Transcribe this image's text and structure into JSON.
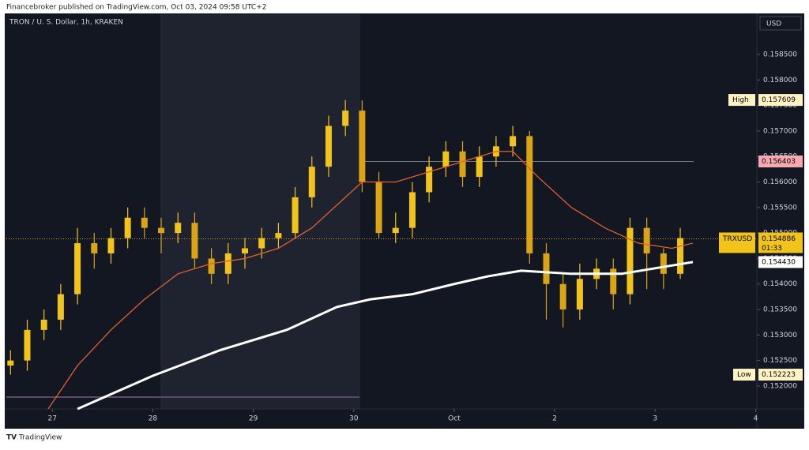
{
  "header": {
    "publisher": "Financebroker published on TradingView.com, Oct 03, 2024 09:58 UTC+2",
    "symbol": "TRON / U. S. Dollar, 1h, KRAKEN",
    "currency": "USD"
  },
  "footer": "TradingView",
  "chart_data": {
    "type": "candlestick",
    "x": [
      -10,
      -6,
      -2,
      2,
      6,
      10,
      14,
      18,
      22,
      26,
      30,
      34,
      38,
      42,
      46,
      50,
      54,
      58,
      62,
      66,
      70,
      74,
      78,
      82,
      86,
      90,
      94,
      98,
      102,
      106,
      110,
      114,
      118,
      122,
      126,
      130,
      134,
      138,
      142,
      146,
      150
    ],
    "open": [
      0.1524,
      0.1525,
      0.1531,
      0.1533,
      0.1538,
      0.1548,
      0.1546,
      0.1549,
      0.1553,
      0.1551,
      0.155,
      0.1552,
      0.1545,
      0.1542,
      0.1546,
      0.1547,
      0.1549,
      0.155,
      0.1557,
      0.1563,
      0.1571,
      0.1574,
      0.156,
      0.155,
      0.1551,
      0.1558,
      0.1563,
      0.1566,
      0.1561,
      0.1565,
      0.1567,
      0.1569,
      0.1546,
      0.154,
      0.1535,
      0.1541,
      0.1543,
      0.1538,
      0.1551,
      0.1546,
      0.1542
    ],
    "high": [
      0.1527,
      0.1533,
      0.1535,
      0.154,
      0.1551,
      0.155,
      0.1551,
      0.1555,
      0.1555,
      0.1553,
      0.1554,
      0.1554,
      0.1547,
      0.1548,
      0.1549,
      0.1551,
      0.1552,
      0.1559,
      0.1565,
      0.1573,
      0.157609,
      0.1576,
      0.1562,
      0.1554,
      0.156,
      0.1565,
      0.1568,
      0.1568,
      0.1567,
      0.1569,
      0.1571,
      0.157,
      0.1548,
      0.1542,
      0.1544,
      0.1545,
      0.1545,
      0.1553,
      0.1553,
      0.1547,
      0.1551
    ],
    "low": [
      0.152223,
      0.1523,
      0.1529,
      0.1531,
      0.1536,
      0.1543,
      0.1544,
      0.1547,
      0.1549,
      0.1546,
      0.1548,
      0.1543,
      0.154,
      0.154,
      0.1543,
      0.1545,
      0.1547,
      0.1549,
      0.1555,
      0.1561,
      0.1569,
      0.1558,
      0.1549,
      0.1548,
      0.1549,
      0.1556,
      0.1561,
      0.1559,
      0.1559,
      0.1563,
      0.1565,
      0.1544,
      0.1533,
      0.15315,
      0.1533,
      0.1539,
      0.1535,
      0.1536,
      0.1539,
      0.1539,
      0.1541
    ],
    "close": [
      0.1525,
      0.1531,
      0.1533,
      0.1538,
      0.1548,
      0.1546,
      0.1549,
      0.1553,
      0.1551,
      0.155,
      0.1552,
      0.1545,
      0.1542,
      0.1546,
      0.1547,
      0.1549,
      0.155,
      0.1557,
      0.1563,
      0.1571,
      0.1574,
      0.156,
      0.155,
      0.1551,
      0.1558,
      0.1563,
      0.1566,
      0.1561,
      0.1565,
      0.1567,
      0.1569,
      0.1546,
      0.154,
      0.1535,
      0.1541,
      0.1543,
      0.1538,
      0.1551,
      0.1546,
      0.1542,
      0.1549
    ],
    "up_color": "#f2c31b",
    "down_color": "#d9a514",
    "moving_averages": [
      {
        "color": "#e0602b",
        "x": [
          -1,
          6,
          14,
          22,
          30,
          38,
          46,
          54,
          62,
          70,
          74,
          82,
          90,
          98,
          106,
          110,
          116,
          124,
          132,
          140,
          148,
          153
        ],
        "values": [
          0.15155,
          0.1524,
          0.1531,
          0.1537,
          0.1542,
          0.1544,
          0.1545,
          0.1547,
          0.1551,
          0.1557,
          0.156,
          0.156,
          0.1562,
          0.1564,
          0.1566,
          0.1566,
          0.1561,
          0.1555,
          0.1551,
          0.1548,
          0.1547,
          0.1548
        ]
      },
      {
        "color": "#ffffff",
        "x": [
          6,
          24,
          40,
          56,
          68,
          76,
          86,
          96,
          104,
          112,
          124,
          136,
          153
        ],
        "values": [
          0.15155,
          0.1522,
          0.1527,
          0.1531,
          0.15355,
          0.1537,
          0.1538,
          0.154,
          0.15415,
          0.15426,
          0.1542,
          0.1542,
          0.15443
        ]
      }
    ],
    "xlim": [
      -11,
      168.3
    ],
    "ylim": [
      0.15155,
      0.15929
    ],
    "xticks": [
      {
        "value": 0,
        "label": "27"
      },
      {
        "value": 24,
        "label": "28"
      },
      {
        "value": 48,
        "label": "29"
      },
      {
        "value": 72,
        "label": "30"
      },
      {
        "value": 96,
        "label": "Oct"
      },
      {
        "value": 120,
        "label": "2"
      },
      {
        "value": 144,
        "label": "3"
      },
      {
        "value": 168,
        "label": "4"
      }
    ],
    "yticks": [
      {
        "value": 0.152,
        "label": "0.152000"
      },
      {
        "value": 0.1525,
        "label": "0.152500"
      },
      {
        "value": 0.153,
        "label": "0.153000"
      },
      {
        "value": 0.1535,
        "label": "0.153500"
      },
      {
        "value": 0.154,
        "label": "0.154000"
      },
      {
        "value": 0.1545,
        "label": "0.154500"
      },
      {
        "value": 0.155,
        "label": "0.155000"
      },
      {
        "value": 0.1555,
        "label": "0.155500"
      },
      {
        "value": 0.156,
        "label": "0.156000"
      },
      {
        "value": 0.1565,
        "label": "0.156500"
      },
      {
        "value": 0.157,
        "label": "0.157000"
      },
      {
        "value": 0.1575,
        "label": "0.157500"
      },
      {
        "value": 0.158,
        "label": "0.158000"
      },
      {
        "value": 0.1585,
        "label": "0.158500"
      }
    ],
    "tags": [
      {
        "value": 0.157609,
        "title": "High",
        "color": "#fff3c4",
        "text_color": "#000000"
      },
      {
        "value": 0.156403,
        "color": "#f7a8b0",
        "text_color": "#000000",
        "line": true
      },
      {
        "value": 0.154886,
        "title": "TRXUSD",
        "countdown": "01:33",
        "color": "#f2c31b",
        "text_color": "#000000",
        "line": true
      },
      {
        "value": 0.15443,
        "label": "0.154430",
        "color": "#ffffff",
        "text_color": "#000000"
      },
      {
        "value": 0.152223,
        "title": "Low",
        "color": "#fff3c4",
        "text_color": "#000000"
      }
    ]
  }
}
